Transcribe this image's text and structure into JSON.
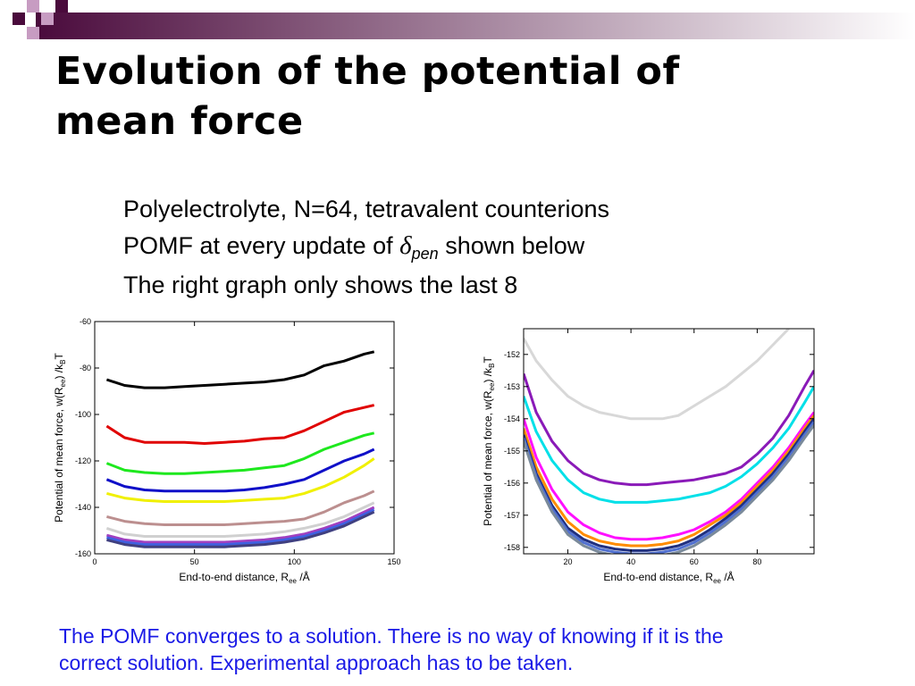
{
  "slide": {
    "title_line1": "Evolution of the potential of",
    "title_line2": "mean force",
    "bullets": {
      "line1": "Polyelectrolyte, N=64, tetravalent counterions",
      "line2_prefix": "POMF at every update of ",
      "line2_delta": "δ",
      "line2_sub": "pen",
      "line2_suffix": " shown below",
      "line3": "The right graph only shows the last 8"
    },
    "footer_line1": "The POMF converges to a solution. There is no way of knowing if it is the",
    "footer_line2": "correct solution. Experimental approach has to be taken."
  },
  "theme": {
    "bar_gradient_start": "#4a0a3c",
    "bar_gradient_end": "#ffffff",
    "deco_dark": "#4a0a3c",
    "deco_light": "#c79cc2",
    "footer_text": "#1a1ae6"
  },
  "chart_data": [
    {
      "type": "line",
      "xlabel_main": "End-to-end distance, R",
      "xlabel_sub": "ee",
      "xlabel_unit": " /Å",
      "ylabel_main": "Potential of mean force, w(R",
      "ylabel_sub1": "ee",
      "ylabel_mid": ") /k",
      "ylabel_sub2": "B",
      "ylabel_end": "T",
      "xlim": [
        0,
        150
      ],
      "ylim": [
        -160,
        -60
      ],
      "xticks": [
        0,
        50,
        100,
        150
      ],
      "yticks": [
        -160,
        -140,
        -120,
        -100,
        -80,
        -60
      ],
      "series": [
        {
          "color": "#000000",
          "x": [
            6,
            15,
            25,
            35,
            45,
            55,
            65,
            75,
            85,
            95,
            105,
            115,
            125,
            135,
            140
          ],
          "y": [
            -85,
            -87.5,
            -88.5,
            -88.5,
            -88,
            -87.5,
            -87,
            -86.5,
            -86,
            -85,
            -83,
            -79,
            -77,
            -74,
            -73
          ]
        },
        {
          "color": "#e00000",
          "x": [
            6,
            15,
            25,
            35,
            45,
            55,
            65,
            75,
            85,
            95,
            105,
            115,
            125,
            135,
            140
          ],
          "y": [
            -105,
            -110,
            -112,
            -112,
            -112,
            -112.5,
            -112,
            -111.5,
            -110.5,
            -110,
            -107,
            -103,
            -99,
            -97,
            -96
          ]
        },
        {
          "color": "#1ee81e",
          "x": [
            6,
            15,
            25,
            35,
            45,
            55,
            65,
            75,
            85,
            95,
            105,
            115,
            125,
            135,
            140
          ],
          "y": [
            -121,
            -124,
            -125,
            -125.5,
            -125.5,
            -125,
            -124.5,
            -124,
            -123,
            -122,
            -119,
            -115,
            -112,
            -109,
            -108
          ]
        },
        {
          "color": "#1010c8",
          "x": [
            6,
            15,
            25,
            35,
            45,
            55,
            65,
            75,
            85,
            95,
            105,
            115,
            125,
            135,
            140
          ],
          "y": [
            -128,
            -131,
            -132.5,
            -133,
            -133,
            -133,
            -133,
            -132.5,
            -131.5,
            -130,
            -128,
            -124,
            -120,
            -117,
            -115
          ]
        },
        {
          "color": "#f0f000",
          "x": [
            6,
            15,
            25,
            35,
            45,
            55,
            65,
            75,
            85,
            95,
            105,
            115,
            125,
            135,
            140
          ],
          "y": [
            -134,
            -136,
            -137,
            -137.5,
            -137.5,
            -137.5,
            -137.5,
            -137,
            -136.5,
            -136,
            -134,
            -131,
            -127,
            -122,
            -119
          ]
        },
        {
          "color": "#bc8f8f",
          "x": [
            6,
            15,
            25,
            35,
            45,
            55,
            65,
            75,
            85,
            95,
            105,
            115,
            125,
            135,
            140
          ],
          "y": [
            -144,
            -146,
            -147,
            -147.5,
            -147.5,
            -147.5,
            -147.5,
            -147,
            -146.5,
            -146,
            -145,
            -142,
            -138,
            -135,
            -133
          ]
        },
        {
          "color": "#d0d0d0",
          "x": [
            6,
            15,
            25,
            35,
            45,
            55,
            65,
            75,
            85,
            95,
            105,
            115,
            125,
            135,
            140
          ],
          "y": [
            -149,
            -151.5,
            -152.5,
            -152.5,
            -152.5,
            -152.5,
            -152.5,
            -152,
            -151.5,
            -150.5,
            -149,
            -147,
            -144,
            -140,
            -138
          ]
        },
        {
          "color": "#a040c0",
          "x": [
            6,
            15,
            25,
            35,
            45,
            55,
            65,
            75,
            85,
            95,
            105,
            115,
            125,
            135,
            140
          ],
          "y": [
            -152,
            -154,
            -155,
            -155,
            -155,
            -155,
            -155,
            -154.5,
            -154,
            -153,
            -151.5,
            -149,
            -146,
            -142,
            -140
          ]
        },
        {
          "color": "#4060e0",
          "x": [
            6,
            15,
            25,
            35,
            45,
            55,
            65,
            75,
            85,
            95,
            105,
            115,
            125,
            135,
            140
          ],
          "y": [
            -153,
            -155,
            -156,
            -156,
            -156,
            -156,
            -156,
            -155.5,
            -155,
            -154,
            -152.5,
            -150,
            -147,
            -143,
            -141
          ]
        },
        {
          "color": "#404080",
          "x": [
            6,
            15,
            25,
            35,
            45,
            55,
            65,
            75,
            85,
            95,
            105,
            115,
            125,
            135,
            140
          ],
          "y": [
            -154,
            -156,
            -157,
            -157,
            -157,
            -157,
            -157,
            -156.5,
            -156,
            -155,
            -153.5,
            -151,
            -148,
            -144,
            -142
          ]
        }
      ]
    },
    {
      "type": "line",
      "xlabel_main": "End-to-end distance, R",
      "xlabel_sub": "ee",
      "xlabel_unit": " /Å",
      "ylabel_main": "Potential of mean force, w(R",
      "ylabel_sub1": "ee",
      "ylabel_mid": ") /k",
      "ylabel_sub2": "B",
      "ylabel_end": "T",
      "xlim": [
        6,
        98
      ],
      "ylim": [
        -158.2,
        -151.2
      ],
      "xticks": [
        20,
        40,
        60,
        80
      ],
      "yticks": [
        -158,
        -157,
        -156,
        -155,
        -154,
        -153,
        -152
      ],
      "series": [
        {
          "color": "#d8d8d8",
          "x": [
            6,
            10,
            15,
            20,
            25,
            30,
            35,
            40,
            45,
            50,
            55,
            60,
            65,
            70,
            75,
            80,
            85,
            90
          ],
          "y": [
            -151.5,
            -152.2,
            -152.8,
            -153.3,
            -153.6,
            -153.8,
            -153.9,
            -154,
            -154,
            -154,
            -153.9,
            -153.6,
            -153.3,
            -153,
            -152.6,
            -152.2,
            -151.7,
            -151.2
          ]
        },
        {
          "color": "#8a1ab8",
          "x": [
            6,
            10,
            15,
            20,
            25,
            30,
            35,
            40,
            45,
            50,
            55,
            60,
            65,
            70,
            75,
            80,
            85,
            90,
            95,
            98
          ],
          "y": [
            -152.6,
            -153.8,
            -154.7,
            -155.3,
            -155.7,
            -155.9,
            -156,
            -156.05,
            -156.05,
            -156,
            -155.95,
            -155.9,
            -155.8,
            -155.7,
            -155.5,
            -155.1,
            -154.6,
            -153.9,
            -153,
            -152.5
          ]
        },
        {
          "color": "#00e0e8",
          "x": [
            6,
            10,
            15,
            20,
            25,
            30,
            35,
            40,
            45,
            50,
            55,
            60,
            65,
            70,
            75,
            80,
            85,
            90,
            95,
            98
          ],
          "y": [
            -153.3,
            -154.4,
            -155.3,
            -155.9,
            -156.3,
            -156.5,
            -156.6,
            -156.6,
            -156.6,
            -156.55,
            -156.5,
            -156.4,
            -156.3,
            -156.1,
            -155.8,
            -155.4,
            -154.9,
            -154.3,
            -153.5,
            -153
          ]
        },
        {
          "color": "#ff10ff",
          "x": [
            6,
            10,
            15,
            20,
            25,
            30,
            35,
            40,
            45,
            50,
            55,
            60,
            65,
            70,
            75,
            80,
            85,
            90,
            95,
            98
          ],
          "y": [
            -154,
            -155.2,
            -156.2,
            -156.9,
            -157.3,
            -157.55,
            -157.7,
            -157.75,
            -157.75,
            -157.7,
            -157.6,
            -157.45,
            -157.2,
            -156.9,
            -156.5,
            -156,
            -155.5,
            -154.9,
            -154.2,
            -153.8
          ]
        },
        {
          "color": "#ff8c00",
          "x": [
            6,
            10,
            15,
            20,
            25,
            30,
            35,
            40,
            45,
            50,
            55,
            60,
            65,
            70,
            75,
            80,
            85,
            90,
            95,
            98
          ],
          "y": [
            -154.3,
            -155.5,
            -156.5,
            -157.2,
            -157.6,
            -157.8,
            -157.9,
            -157.95,
            -157.95,
            -157.9,
            -157.8,
            -157.6,
            -157.3,
            -157,
            -156.6,
            -156.1,
            -155.6,
            -155,
            -154.3,
            -153.9
          ]
        },
        {
          "color": "#203080",
          "x": [
            6,
            10,
            15,
            20,
            25,
            30,
            35,
            40,
            45,
            50,
            55,
            60,
            65,
            70,
            75,
            80,
            85,
            90,
            95,
            98
          ],
          "y": [
            -154.5,
            -155.7,
            -156.7,
            -157.4,
            -157.75,
            -157.95,
            -158.05,
            -158.1,
            -158.1,
            -158.05,
            -157.95,
            -157.75,
            -157.45,
            -157.1,
            -156.7,
            -156.2,
            -155.7,
            -155.1,
            -154.4,
            -154
          ]
        },
        {
          "color": "#5070d0",
          "x": [
            6,
            10,
            15,
            20,
            25,
            30,
            35,
            40,
            45,
            50,
            55,
            60,
            65,
            70,
            75,
            80,
            85,
            90,
            95,
            98
          ],
          "y": [
            -154.6,
            -155.8,
            -156.8,
            -157.5,
            -157.85,
            -158.05,
            -158.15,
            -158.2,
            -158.2,
            -158.15,
            -158.05,
            -157.85,
            -157.55,
            -157.2,
            -156.8,
            -156.3,
            -155.8,
            -155.2,
            -154.5,
            -154.1
          ]
        },
        {
          "color": "#7a8a9a",
          "x": [
            6,
            10,
            15,
            20,
            25,
            30,
            35,
            40,
            45,
            50,
            55,
            60,
            65,
            70,
            75,
            80,
            85,
            90,
            95,
            98
          ],
          "y": [
            -154.7,
            -155.9,
            -156.9,
            -157.6,
            -157.95,
            -158.15,
            -158.25,
            -158.3,
            -158.3,
            -158.25,
            -158.15,
            -157.95,
            -157.65,
            -157.3,
            -156.9,
            -156.4,
            -155.9,
            -155.3,
            -154.6,
            -154.2
          ]
        }
      ]
    }
  ]
}
